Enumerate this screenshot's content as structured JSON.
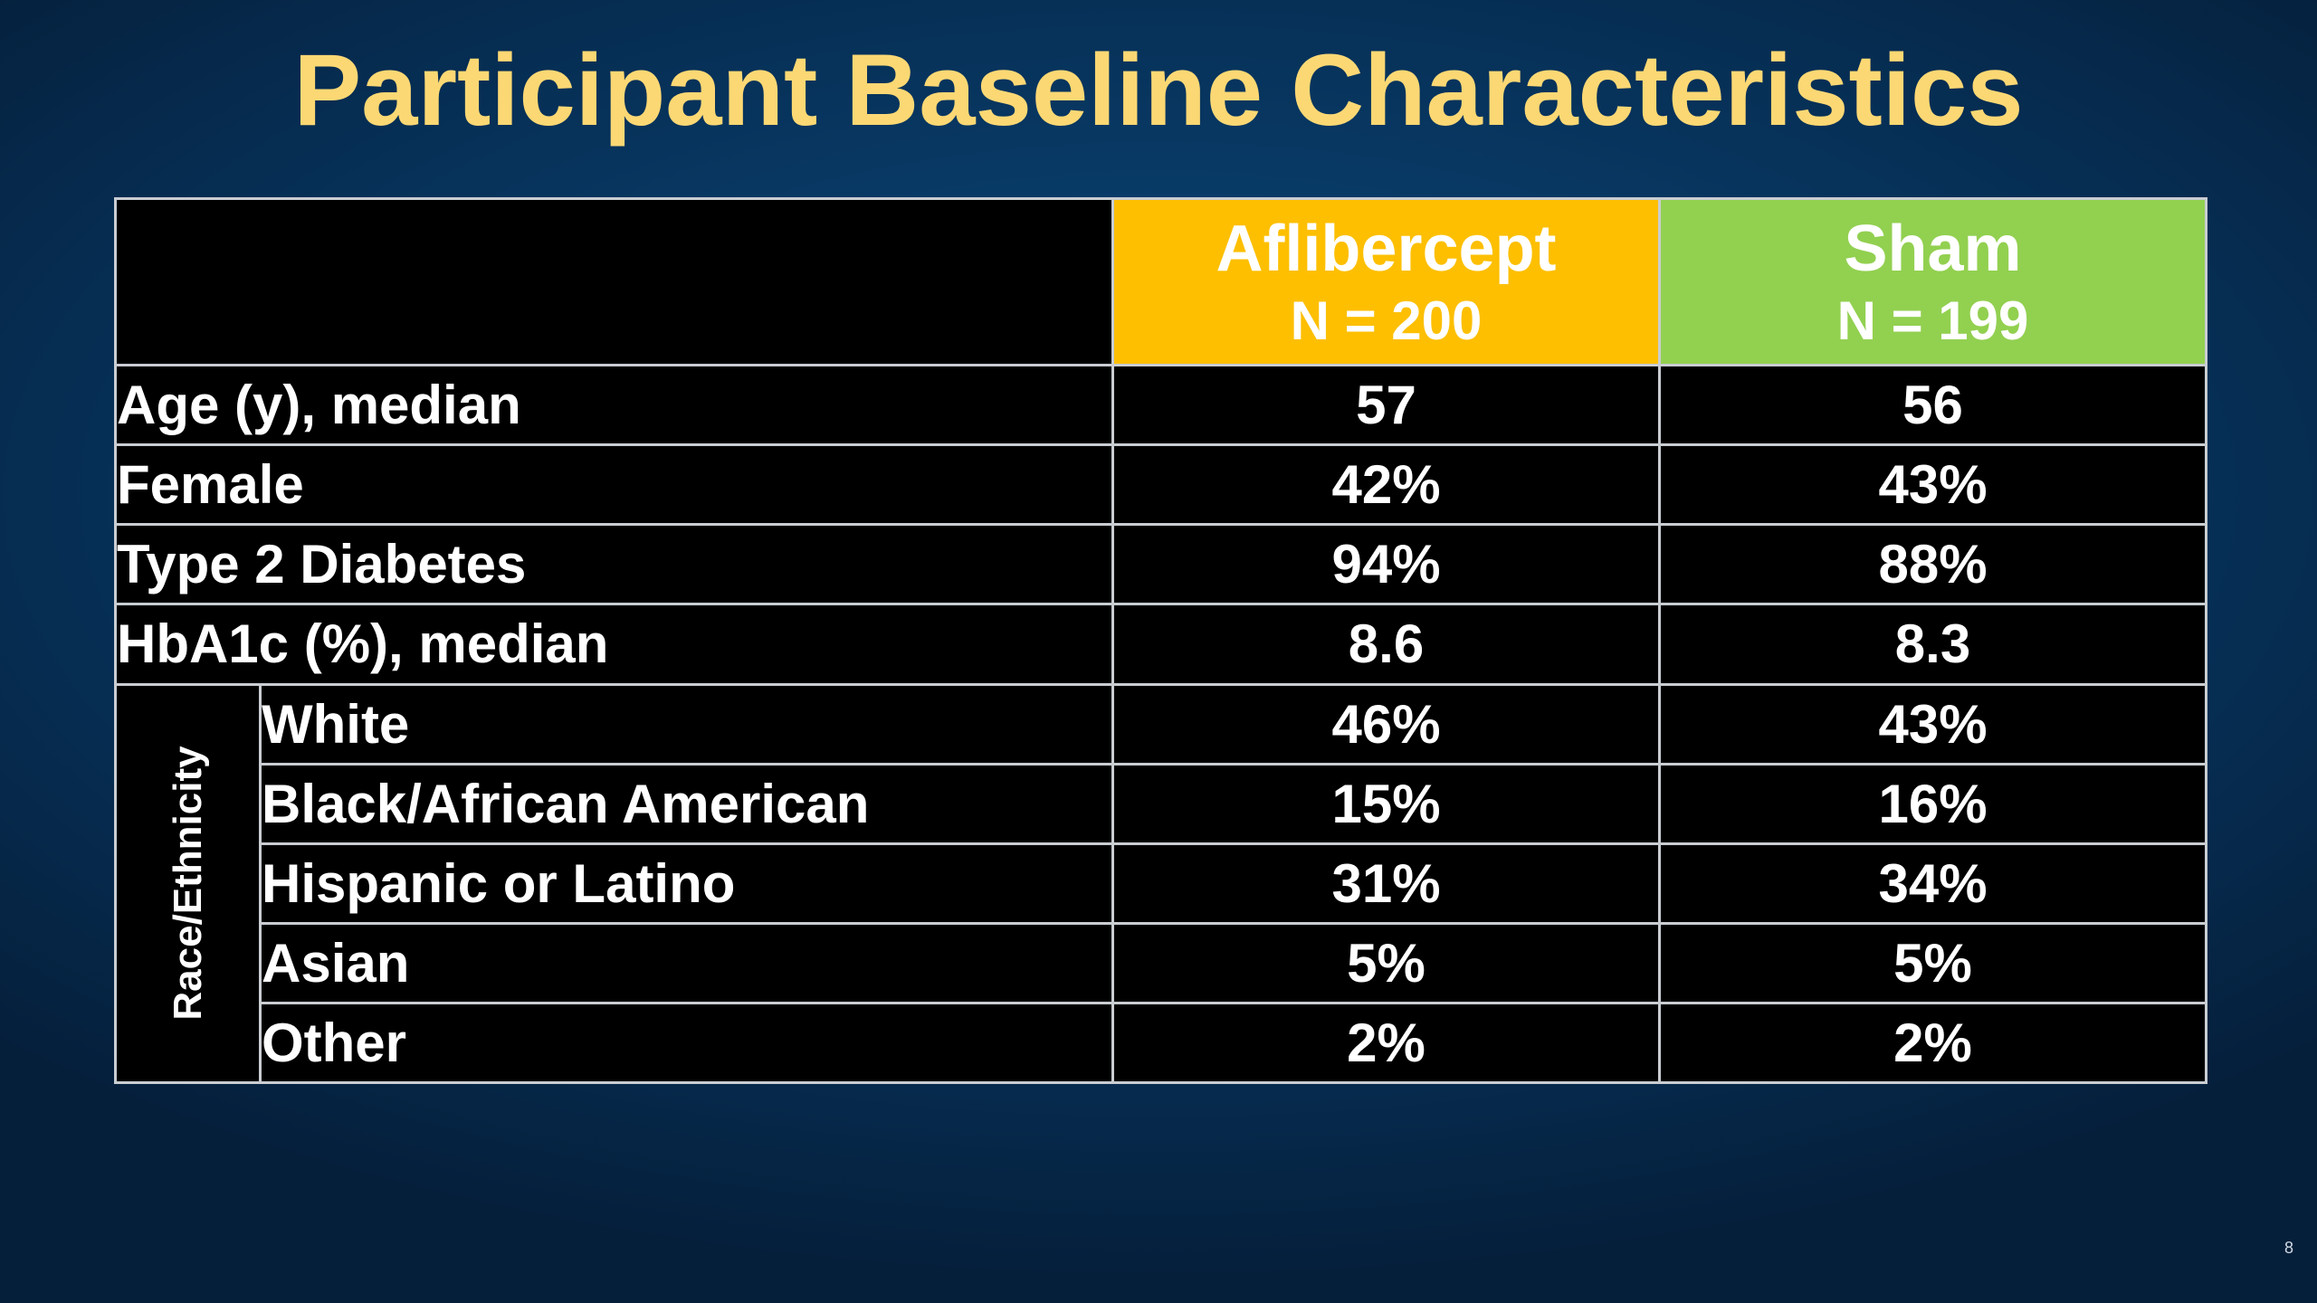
{
  "title": "Participant Baseline Characteristics",
  "slide_number": "8",
  "colors": {
    "title": "#fcd874",
    "aflibercept_header": "#fdbf00",
    "sham_header": "#92d050",
    "table_background": "#000000",
    "grid_lines": "#c9cdd2",
    "background": "#083a66"
  },
  "table": {
    "columns": [
      {
        "name": "Aflibercept",
        "n": "N = 200"
      },
      {
        "name": "Sham",
        "n": "N = 199"
      }
    ],
    "rows": [
      {
        "label": "Age (y), median",
        "values": [
          "57",
          "56"
        ]
      },
      {
        "label": "Female",
        "values": [
          "42%",
          "43%"
        ]
      },
      {
        "label": "Type 2 Diabetes",
        "values": [
          "94%",
          "88%"
        ]
      },
      {
        "label": "HbA1c (%), median",
        "values": [
          "8.6",
          "8.3"
        ]
      }
    ],
    "race_group": {
      "label": "Race/Ethnicity",
      "rows": [
        {
          "label": "White",
          "values": [
            "46%",
            "43%"
          ]
        },
        {
          "label": "Black/African American",
          "values": [
            "15%",
            "16%"
          ]
        },
        {
          "label": "Hispanic or Latino",
          "values": [
            "31%",
            "34%"
          ]
        },
        {
          "label": "Asian",
          "values": [
            "5%",
            "5%"
          ]
        },
        {
          "label": "Other",
          "values": [
            "2%",
            "2%"
          ]
        }
      ]
    }
  }
}
